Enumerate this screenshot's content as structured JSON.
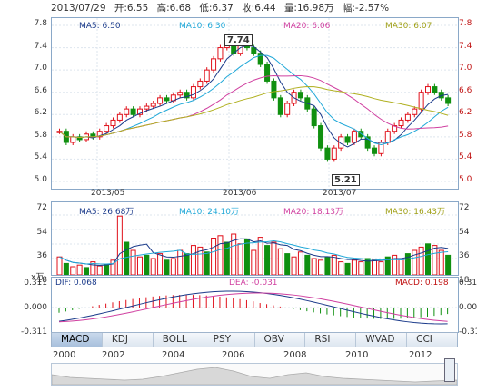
{
  "header": {
    "date": "2013/07/29",
    "open_label": "开:6.55",
    "high_label": "高:6.68",
    "low_label": "低:6.37",
    "close_label": "收:6.44",
    "volume_label": "量:16.98万",
    "change_label": "幅:-2.57%"
  },
  "price_panel": {
    "ma5": "MA5: 6.50",
    "ma10": "MA10: 6.30",
    "ma20": "MA20: 6.06",
    "ma30": "MA30: 6.07",
    "high_callout": "7.74",
    "low_callout": "5.21",
    "y_ticks": [
      "7.8",
      "7.4",
      "7.0",
      "6.6",
      "6.2",
      "5.8",
      "5.4",
      "5.0"
    ],
    "x_ticks": [
      "2013/05",
      "2013/06",
      "2013/07"
    ]
  },
  "volume_panel": {
    "ma5": "MA5: 26.68万",
    "ma10": "MA10: 24.10万",
    "ma20": "MA20: 18.13万",
    "ma30": "MA30: 16.43万",
    "y_ticks": [
      "72",
      "54",
      "36",
      "18"
    ],
    "unit": "x万"
  },
  "macd_panel": {
    "dif": "DIF: 0.068",
    "dea": "DEA: -0.031",
    "macd": "MACD: 0.198",
    "y_ticks": [
      "0.311",
      "0.000",
      "-0.311"
    ]
  },
  "tabs": [
    "MACD",
    "KDJ",
    "BOLL",
    "PSY",
    "OBV",
    "RSI",
    "WVAD",
    "CCI"
  ],
  "active_tab": "MACD",
  "years": [
    "2000",
    "2002",
    "2004",
    "2006",
    "2008",
    "2010",
    "2012"
  ],
  "colors": {
    "up": "#e0101a",
    "down": "#109010",
    "ma5": "#1a3a8a",
    "ma10": "#20a8d8",
    "ma20": "#d040a0",
    "ma30": "#b0b020",
    "frame": "#8aa8c8"
  }
}
